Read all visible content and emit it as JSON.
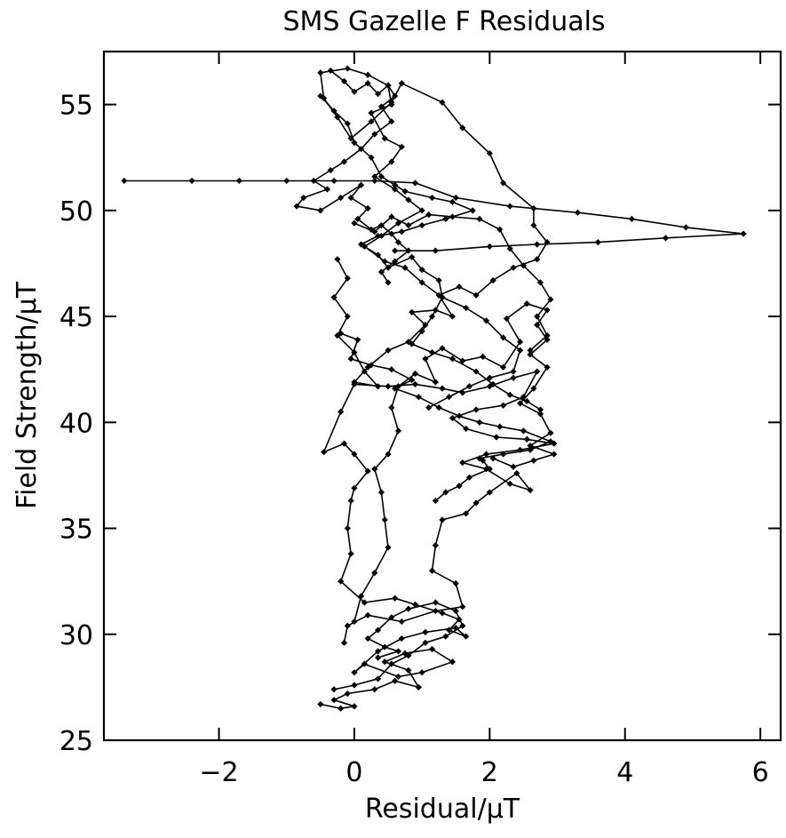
{
  "chart_data": {
    "type": "line",
    "title": "SMS Gazelle F Residuals",
    "xlabel": "Residual/μT",
    "ylabel": "Field Strength/μT",
    "xlim": [
      -3.7,
      6.3
    ],
    "ylim": [
      25,
      57.5
    ],
    "xticks": [
      -2,
      0,
      2,
      4,
      6
    ],
    "yticks": [
      25,
      30,
      35,
      40,
      45,
      50,
      55
    ],
    "xtick_labels": [
      "−2",
      "0",
      "2",
      "4",
      "6"
    ],
    "ytick_labels": [
      "25",
      "30",
      "35",
      "40",
      "45",
      "50",
      "55"
    ],
    "grid": false,
    "legend": "none",
    "line_color": "#000000",
    "marker": "diamond",
    "series": [
      {
        "values": [
          [
            -0.5,
            26.7
          ],
          [
            -0.2,
            26.5
          ],
          [
            0.0,
            26.6
          ],
          [
            -0.3,
            26.9
          ],
          [
            -0.1,
            27.2
          ],
          [
            0.3,
            27.4
          ],
          [
            0.6,
            27.8
          ],
          [
            0.95,
            27.5
          ],
          [
            0.8,
            28.3
          ],
          [
            0.45,
            28.7
          ],
          [
            0.75,
            29.1
          ],
          [
            1.15,
            29.3
          ],
          [
            1.45,
            28.7
          ],
          [
            1.0,
            28.2
          ],
          [
            0.65,
            28.0
          ],
          [
            0.15,
            28.6
          ],
          [
            0.0,
            28.2
          ],
          [
            0.35,
            29.2
          ],
          [
            0.7,
            29.8
          ],
          [
            1.05,
            30.1
          ],
          [
            1.5,
            30.3
          ],
          [
            1.65,
            29.9
          ],
          [
            1.4,
            30.2
          ],
          [
            1.55,
            30.7
          ],
          [
            1.3,
            31.0
          ],
          [
            0.9,
            31.4
          ],
          [
            0.6,
            31.7
          ],
          [
            0.15,
            31.5
          ],
          [
            -0.2,
            32.5
          ],
          [
            -0.05,
            33.8
          ],
          [
            -0.1,
            35.0
          ],
          [
            -0.05,
            36.3
          ],
          [
            0.0,
            36.9
          ],
          [
            0.2,
            37.7
          ],
          [
            0.0,
            38.5
          ],
          [
            -0.15,
            39.0
          ],
          [
            -0.45,
            38.6
          ],
          [
            -0.2,
            40.5
          ],
          [
            0.0,
            41.8
          ],
          [
            0.5,
            41.7
          ],
          [
            0.9,
            41.8
          ],
          [
            1.3,
            41.6
          ],
          [
            1.6,
            41.4
          ],
          [
            2.0,
            41.7
          ],
          [
            2.35,
            42.1
          ],
          [
            2.7,
            42.4
          ],
          [
            2.5,
            41.2
          ],
          [
            2.2,
            40.8
          ],
          [
            1.8,
            40.6
          ],
          [
            1.45,
            40.2
          ],
          [
            1.65,
            39.7
          ],
          [
            2.1,
            39.3
          ],
          [
            2.55,
            39.2
          ],
          [
            2.95,
            39.0
          ],
          [
            2.45,
            38.7
          ],
          [
            1.95,
            38.5
          ],
          [
            1.6,
            38.1
          ],
          [
            1.95,
            37.8
          ],
          [
            2.3,
            37.1
          ],
          [
            2.6,
            36.8
          ],
          [
            2.4,
            37.6
          ],
          [
            2.0,
            36.7
          ],
          [
            1.8,
            36.2
          ],
          [
            1.65,
            35.7
          ],
          [
            1.3,
            35.4
          ],
          [
            1.2,
            34.2
          ],
          [
            1.15,
            33.0
          ],
          [
            1.5,
            32.4
          ],
          [
            1.6,
            31.3
          ],
          [
            1.2,
            31.1
          ],
          [
            0.7,
            30.6
          ],
          [
            0.2,
            30.9
          ],
          [
            -0.1,
            30.4
          ],
          [
            -0.15,
            29.6
          ]
        ]
      },
      {
        "values": [
          [
            0.0,
            30.6
          ],
          [
            0.1,
            31.8
          ],
          [
            0.3,
            32.9
          ],
          [
            0.5,
            34.1
          ],
          [
            0.45,
            35.4
          ],
          [
            0.4,
            36.7
          ],
          [
            0.3,
            37.8
          ],
          [
            0.5,
            38.5
          ],
          [
            0.65,
            39.6
          ],
          [
            0.55,
            40.7
          ],
          [
            0.65,
            41.7
          ],
          [
            0.9,
            42.3
          ],
          [
            1.2,
            41.9
          ],
          [
            1.05,
            43.0
          ],
          [
            1.3,
            43.5
          ],
          [
            1.6,
            42.9
          ],
          [
            1.9,
            43.1
          ],
          [
            2.2,
            42.6
          ],
          [
            2.45,
            43.8
          ],
          [
            2.25,
            44.9
          ],
          [
            2.55,
            45.6
          ],
          [
            2.85,
            45.3
          ],
          [
            2.7,
            44.6
          ],
          [
            2.85,
            43.9
          ],
          [
            2.6,
            43.2
          ],
          [
            2.85,
            42.6
          ],
          [
            2.65,
            41.6
          ],
          [
            2.45,
            40.9
          ],
          [
            2.75,
            40.4
          ],
          [
            2.9,
            39.5
          ],
          [
            2.6,
            38.9
          ],
          [
            2.95,
            38.5
          ],
          [
            2.65,
            38.2
          ],
          [
            2.35,
            37.9
          ],
          [
            2.05,
            38.3
          ]
        ]
      },
      {
        "values": [
          [
            -0.25,
            47.7
          ],
          [
            -0.1,
            46.8
          ],
          [
            -0.3,
            45.9
          ],
          [
            -0.1,
            45.0
          ],
          [
            -0.25,
            44.1
          ],
          [
            0.0,
            43.3
          ],
          [
            0.15,
            42.4
          ],
          [
            0.35,
            41.7
          ],
          [
            0.0,
            41.9
          ],
          [
            0.2,
            42.6
          ],
          [
            0.5,
            43.4
          ],
          [
            0.8,
            43.8
          ],
          [
            1.05,
            44.6
          ],
          [
            0.85,
            45.2
          ],
          [
            1.2,
            45.3
          ],
          [
            1.45,
            45.0
          ],
          [
            1.25,
            46.0
          ],
          [
            1.55,
            46.4
          ],
          [
            1.8,
            46.0
          ],
          [
            2.05,
            46.7
          ],
          [
            2.35,
            47.3
          ],
          [
            2.7,
            47.7
          ],
          [
            2.85,
            48.5
          ],
          [
            2.65,
            49.3
          ],
          [
            2.65,
            50.1
          ],
          [
            2.2,
            51.3
          ],
          [
            2.0,
            52.7
          ],
          [
            1.6,
            53.9
          ],
          [
            1.3,
            55.1
          ],
          [
            0.7,
            56.0
          ],
          [
            0.55,
            55.1
          ],
          [
            0.25,
            54.2
          ],
          [
            -0.05,
            53.4
          ],
          [
            -0.25,
            54.4
          ],
          [
            -0.45,
            55.3
          ],
          [
            -0.5,
            56.5
          ],
          [
            -0.1,
            56.7
          ],
          [
            0.2,
            56.4
          ],
          [
            0.5,
            55.9
          ],
          [
            0.55,
            55.0
          ],
          [
            0.25,
            54.6
          ],
          [
            0.45,
            53.4
          ],
          [
            0.7,
            53.0
          ],
          [
            0.55,
            52.3
          ],
          [
            0.3,
            51.6
          ],
          [
            0.6,
            51.0
          ],
          [
            0.8,
            50.5
          ],
          [
            1.0,
            50.0
          ],
          [
            0.65,
            49.4
          ],
          [
            0.4,
            48.8
          ],
          [
            0.15,
            48.3
          ],
          [
            0.45,
            47.6
          ],
          [
            0.75,
            47.3
          ],
          [
            1.0,
            46.6
          ],
          [
            1.3,
            45.9
          ],
          [
            1.65,
            45.4
          ],
          [
            1.95,
            44.8
          ],
          [
            2.2,
            44.0
          ],
          [
            2.45,
            43.4
          ],
          [
            2.35,
            42.4
          ],
          [
            2.0,
            42.1
          ],
          [
            1.7,
            41.7
          ],
          [
            1.4,
            41.2
          ],
          [
            1.1,
            40.7
          ]
        ]
      },
      {
        "values": [
          [
            -0.5,
            55.4
          ],
          [
            -0.3,
            54.7
          ],
          [
            -0.1,
            54.1
          ],
          [
            0.0,
            53.2
          ],
          [
            0.25,
            52.5
          ],
          [
            0.4,
            51.6
          ],
          [
            0.6,
            51.2
          ],
          [
            0.75,
            50.9
          ],
          [
            1.15,
            50.6
          ],
          [
            1.45,
            50.4
          ],
          [
            1.75,
            50.0
          ],
          [
            1.35,
            49.6
          ],
          [
            1.0,
            49.3
          ],
          [
            0.7,
            49.0
          ],
          [
            0.35,
            48.8
          ],
          [
            0.1,
            48.4
          ],
          [
            0.35,
            47.9
          ],
          [
            0.5,
            47.3
          ],
          [
            0.85,
            47.8
          ],
          [
            1.0,
            47.2
          ],
          [
            1.25,
            46.7
          ],
          [
            1.3,
            45.9
          ],
          [
            1.15,
            45.0
          ],
          [
            1.0,
            44.3
          ],
          [
            0.85,
            43.7
          ],
          [
            1.15,
            43.3
          ],
          [
            1.45,
            43.0
          ],
          [
            1.8,
            42.4
          ],
          [
            2.05,
            41.8
          ],
          [
            2.3,
            41.3
          ],
          [
            2.55,
            41.0
          ],
          [
            2.75,
            40.6
          ]
        ]
      },
      {
        "values": [
          [
            -0.2,
            44.2
          ],
          [
            0.05,
            43.9
          ],
          [
            -0.05,
            43.0
          ],
          [
            0.25,
            42.7
          ],
          [
            0.55,
            42.5
          ],
          [
            0.85,
            42.0
          ],
          [
            0.6,
            41.6
          ],
          [
            0.95,
            41.2
          ],
          [
            1.25,
            40.7
          ],
          [
            1.55,
            40.3
          ],
          [
            1.85,
            40.0
          ],
          [
            2.15,
            39.8
          ],
          [
            2.5,
            39.6
          ],
          [
            2.9,
            39.1
          ],
          [
            2.6,
            38.7
          ],
          [
            2.2,
            38.5
          ],
          [
            1.85,
            38.3
          ]
        ]
      },
      {
        "values": [
          [
            1.9,
            38.2
          ],
          [
            2.0,
            37.8
          ],
          [
            1.7,
            37.4
          ],
          [
            1.55,
            37.0
          ],
          [
            1.35,
            36.7
          ],
          [
            1.2,
            36.3
          ]
        ]
      },
      {
        "values": [
          [
            -0.35,
            56.6
          ],
          [
            -0.15,
            56.1
          ],
          [
            0.0,
            55.6
          ],
          [
            0.2,
            56.0
          ],
          [
            0.35,
            55.5
          ],
          [
            0.5,
            55.9
          ],
          [
            0.6,
            55.4
          ],
          [
            0.4,
            54.9
          ],
          [
            0.55,
            54.2
          ],
          [
            0.3,
            53.6
          ],
          [
            0.1,
            52.9
          ],
          [
            -0.15,
            52.3
          ],
          [
            -0.35,
            51.9
          ],
          [
            -0.6,
            51.4
          ],
          [
            -0.4,
            51.0
          ],
          [
            -0.75,
            50.6
          ],
          [
            -0.85,
            50.2
          ],
          [
            -0.5,
            50.0
          ],
          [
            -0.2,
            50.6
          ],
          [
            0.1,
            51.2
          ],
          [
            -0.05,
            50.6
          ],
          [
            0.2,
            50.1
          ],
          [
            0.05,
            49.6
          ],
          [
            0.25,
            49.1
          ],
          [
            0.4,
            49.3
          ],
          [
            0.55,
            48.9
          ],
          [
            0.65,
            48.5
          ],
          [
            0.8,
            48.1
          ],
          [
            0.6,
            47.6
          ],
          [
            0.4,
            47.1
          ],
          [
            0.5,
            46.6
          ]
        ]
      },
      {
        "values": [
          [
            -3.4,
            51.4
          ],
          [
            -2.4,
            51.4
          ],
          [
            -1.7,
            51.4
          ],
          [
            -1.0,
            51.4
          ],
          [
            -0.3,
            51.4
          ],
          [
            0.3,
            51.4
          ],
          [
            0.9,
            51.3
          ],
          [
            1.5,
            50.6
          ],
          [
            2.3,
            50.2
          ],
          [
            3.3,
            49.9
          ],
          [
            4.1,
            49.6
          ],
          [
            4.9,
            49.2
          ],
          [
            5.75,
            48.9
          ],
          [
            4.6,
            48.7
          ],
          [
            3.6,
            48.5
          ],
          [
            2.7,
            48.4
          ],
          [
            2.0,
            48.3
          ],
          [
            1.2,
            48.1
          ],
          [
            0.6,
            48.1
          ]
        ]
      },
      {
        "values": [
          [
            0.0,
            49.4
          ],
          [
            0.3,
            49.0
          ],
          [
            0.55,
            49.7
          ],
          [
            0.8,
            49.3
          ],
          [
            1.1,
            49.8
          ],
          [
            1.45,
            49.7
          ],
          [
            1.85,
            49.6
          ],
          [
            2.15,
            49.1
          ],
          [
            2.3,
            48.2
          ],
          [
            2.5,
            47.4
          ],
          [
            2.75,
            46.6
          ],
          [
            2.9,
            45.8
          ],
          [
            2.7,
            45.0
          ],
          [
            2.85,
            44.1
          ],
          [
            2.6,
            43.4
          ]
        ]
      },
      {
        "values": [
          [
            -0.3,
            27.4
          ],
          [
            0.0,
            27.6
          ],
          [
            0.35,
            27.9
          ],
          [
            0.55,
            28.6
          ],
          [
            0.8,
            29.0
          ],
          [
            1.05,
            29.6
          ],
          [
            1.35,
            29.9
          ],
          [
            1.6,
            30.4
          ],
          [
            1.5,
            31.1
          ],
          [
            1.2,
            31.5
          ],
          [
            0.8,
            31.2
          ],
          [
            0.55,
            30.8
          ],
          [
            0.35,
            30.2
          ],
          [
            0.2,
            29.8
          ],
          [
            0.45,
            29.4
          ],
          [
            0.65,
            29.2
          ],
          [
            0.35,
            28.9
          ]
        ]
      }
    ]
  }
}
